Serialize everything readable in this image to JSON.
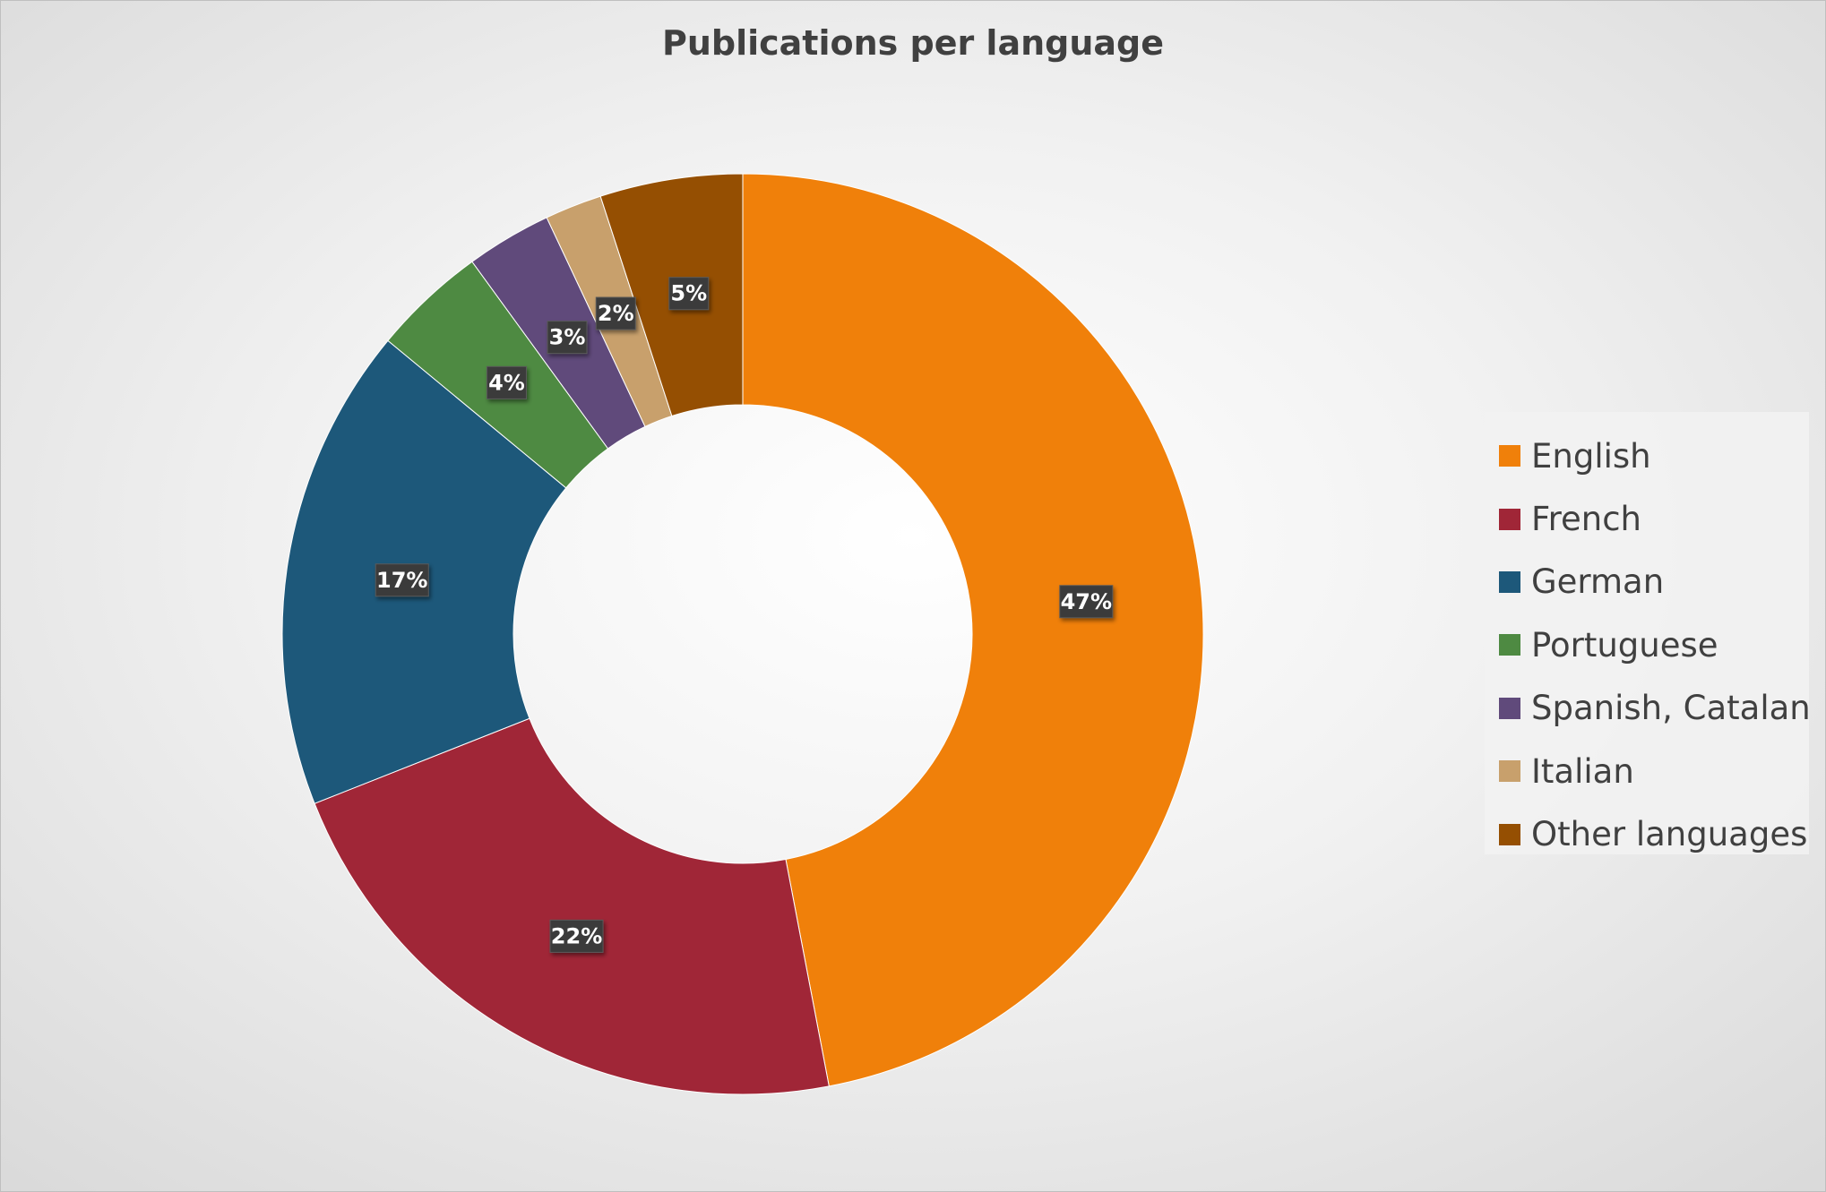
{
  "chart_data": {
    "type": "pie",
    "variant": "doughnut",
    "title": "Publications per language",
    "categories": [
      "English",
      "French",
      "German",
      "Portuguese",
      "Spanish, Catalan",
      "Italian",
      "Other languages"
    ],
    "values": [
      47,
      22,
      17,
      4,
      3,
      2,
      5
    ],
    "data_labels": [
      "47%",
      "22%",
      "17%",
      "4%",
      "3%",
      "2%",
      "5%"
    ],
    "colors": [
      "#f0800a",
      "#a02637",
      "#1d587a",
      "#4e8a42",
      "#604a7b",
      "#c8a06c",
      "#954f02"
    ],
    "legend_position": "right"
  }
}
